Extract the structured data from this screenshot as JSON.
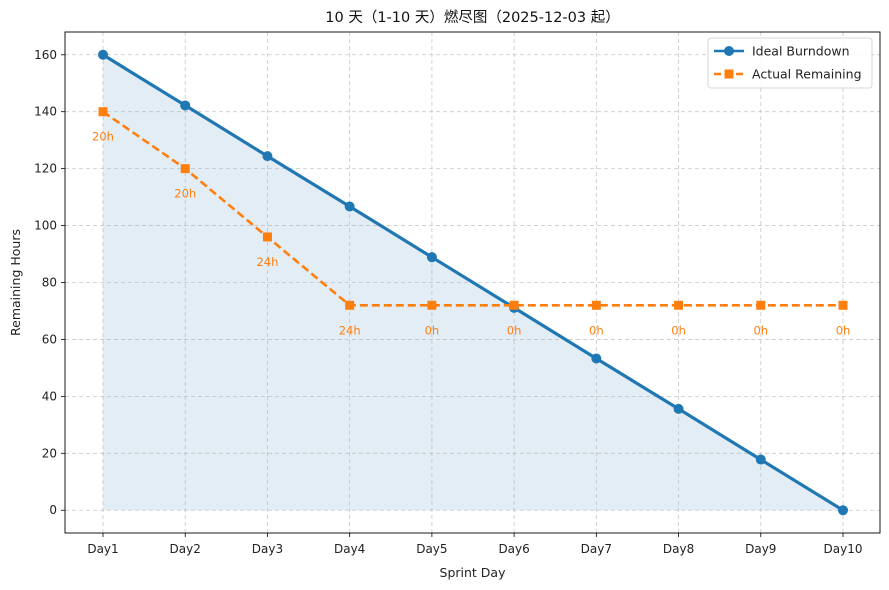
{
  "chart_data": {
    "type": "line",
    "title": "10 天（1-10 天）燃尽图（2025-12-03 起）",
    "xlabel": "Sprint Day",
    "ylabel": "Remaining Hours",
    "categories": [
      "Day1",
      "Day2",
      "Day3",
      "Day4",
      "Day5",
      "Day6",
      "Day7",
      "Day8",
      "Day9",
      "Day10"
    ],
    "ylim": [
      -8,
      168
    ],
    "yticks": [
      0,
      20,
      40,
      60,
      80,
      100,
      120,
      140,
      160
    ],
    "grid": true,
    "legend_position": "top-right",
    "series": [
      {
        "name": "Ideal Burndown",
        "color": "#1f77b4",
        "style": "solid",
        "marker": "circle",
        "fill_under": true,
        "values": [
          160,
          142.2,
          124.4,
          106.7,
          88.9,
          71.1,
          53.3,
          35.6,
          17.8,
          0
        ]
      },
      {
        "name": "Actual Remaining",
        "color": "#ff7f0e",
        "style": "dashed",
        "marker": "square",
        "fill_under": false,
        "values": [
          140,
          120,
          96,
          72,
          72,
          72,
          72,
          72,
          72,
          72
        ],
        "point_labels": [
          "20h",
          "20h",
          "24h",
          "24h",
          "0h",
          "0h",
          "0h",
          "0h",
          "0h",
          "0h"
        ]
      }
    ]
  }
}
